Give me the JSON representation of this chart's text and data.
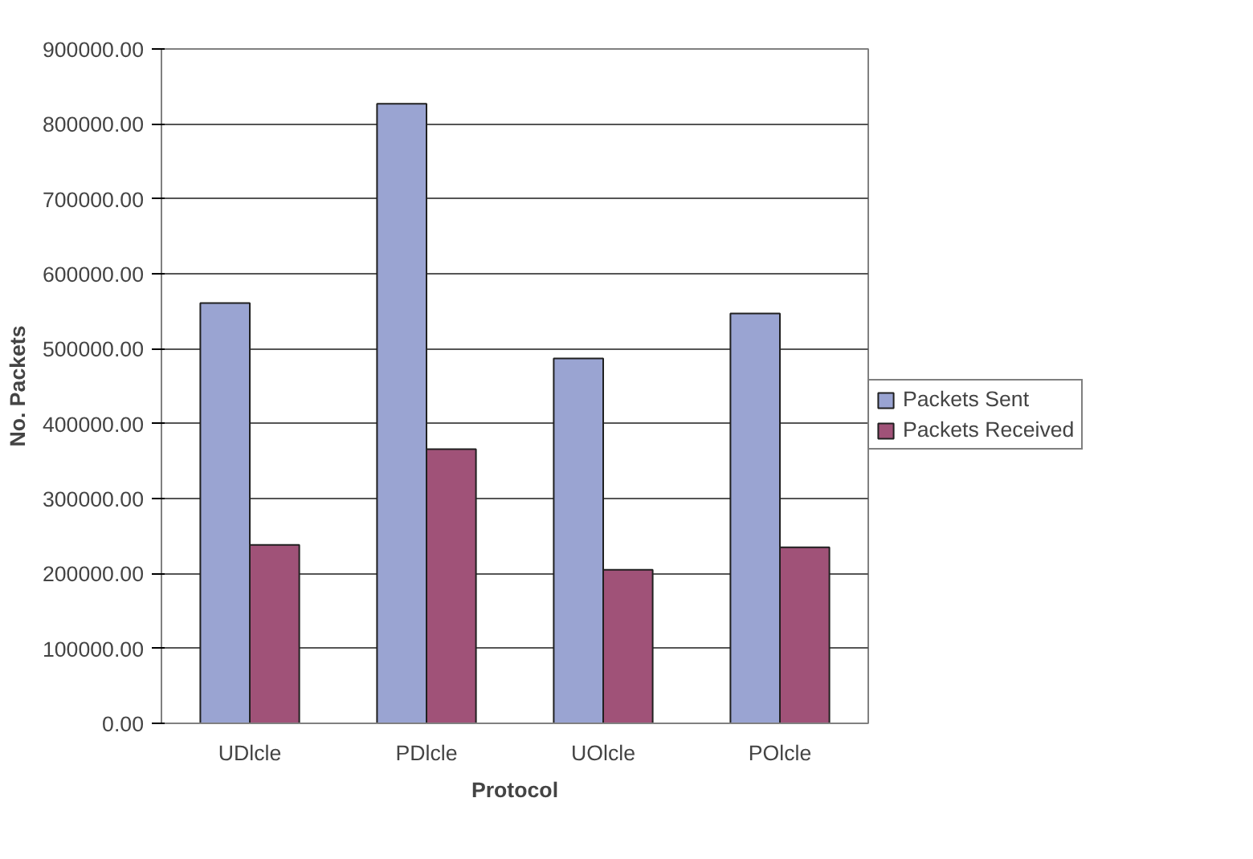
{
  "chart_data": {
    "type": "bar",
    "xlabel": "Protocol",
    "ylabel": "No. Packets",
    "categories": [
      "UDlcle",
      "PDlcle",
      "UOlcle",
      "POlcle"
    ],
    "series": [
      {
        "name": "Packets Sent",
        "color": "#9aa4d2",
        "values": [
          561000,
          827000,
          487000,
          547000
        ]
      },
      {
        "name": "Packets Received",
        "color": "#a05278",
        "values": [
          238000,
          366000,
          205000,
          235000
        ]
      }
    ],
    "ylim": [
      0,
      900000
    ],
    "yticks": [
      {
        "value": 0,
        "label": "0.00"
      },
      {
        "value": 100000,
        "label": "100000.00"
      },
      {
        "value": 200000,
        "label": "200000.00"
      },
      {
        "value": 300000,
        "label": "300000.00"
      },
      {
        "value": 400000,
        "label": "400000.00"
      },
      {
        "value": 500000,
        "label": "500000.00"
      },
      {
        "value": 600000,
        "label": "600000.00"
      },
      {
        "value": 700000,
        "label": "700000.00"
      },
      {
        "value": 800000,
        "label": "800000.00"
      },
      {
        "value": 900000,
        "label": "900000.00"
      }
    ],
    "grid": "y",
    "legend": "right"
  }
}
